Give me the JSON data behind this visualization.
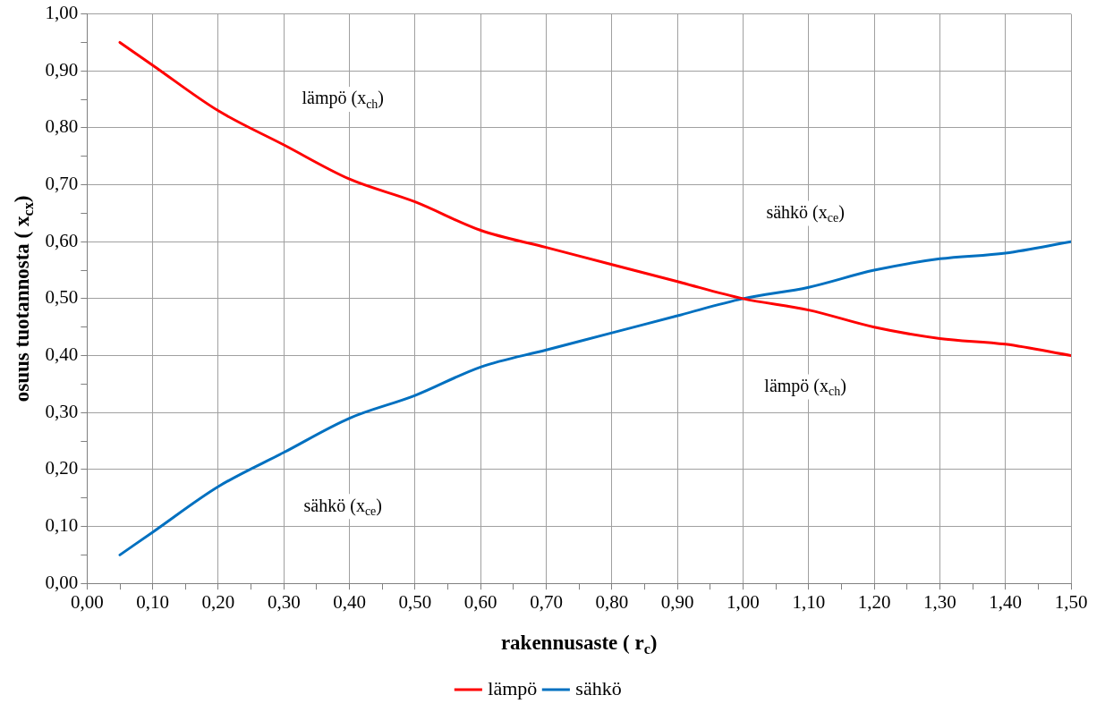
{
  "chart_data": {
    "type": "line",
    "xlabel": "rakennusaste ( r$_{c}$)",
    "ylabel": "osuus tuotannosta ( x$_{cx}$)",
    "x": [
      0.05,
      0.1,
      0.2,
      0.3,
      0.4,
      0.5,
      0.6,
      0.7,
      0.8,
      0.9,
      1.0,
      1.1,
      1.2,
      1.3,
      1.4,
      1.5
    ],
    "series": [
      {
        "name": "lämpö",
        "color": "#ff0000",
        "values": [
          0.95,
          0.91,
          0.83,
          0.77,
          0.71,
          0.67,
          0.62,
          0.59,
          0.56,
          0.53,
          0.5,
          0.48,
          0.45,
          0.43,
          0.42,
          0.4
        ]
      },
      {
        "name": "sähkö",
        "color": "#0070c0",
        "values": [
          0.05,
          0.09,
          0.17,
          0.23,
          0.29,
          0.33,
          0.38,
          0.41,
          0.44,
          0.47,
          0.5,
          0.52,
          0.55,
          0.57,
          0.58,
          0.6
        ]
      }
    ],
    "xlim": [
      0,
      1.5
    ],
    "xticks": [
      {
        "value": 0,
        "label": "0,00"
      },
      {
        "value": 0.05,
        "label": null
      },
      {
        "value": 0.1,
        "label": "0,10"
      },
      {
        "value": 0.15,
        "label": null
      },
      {
        "value": 0.2,
        "label": "0,20"
      },
      {
        "value": 0.25,
        "label": null
      },
      {
        "value": 0.3,
        "label": "0,30"
      },
      {
        "value": 0.35,
        "label": null
      },
      {
        "value": 0.4,
        "label": "0,40"
      },
      {
        "value": 0.45,
        "label": null
      },
      {
        "value": 0.5,
        "label": "0,50"
      },
      {
        "value": 0.55,
        "label": null
      },
      {
        "value": 0.6,
        "label": "0,60"
      },
      {
        "value": 0.65,
        "label": null
      },
      {
        "value": 0.7,
        "label": "0,70"
      },
      {
        "value": 0.75,
        "label": null
      },
      {
        "value": 0.8,
        "label": "0,80"
      },
      {
        "value": 0.85,
        "label": null
      },
      {
        "value": 0.9,
        "label": "0,90"
      },
      {
        "value": 0.95,
        "label": null
      },
      {
        "value": 1.0,
        "label": "1,00"
      },
      {
        "value": 1.05,
        "label": null
      },
      {
        "value": 1.1,
        "label": "1,10"
      },
      {
        "value": 1.15,
        "label": null
      },
      {
        "value": 1.2,
        "label": "1,20"
      },
      {
        "value": 1.25,
        "label": null
      },
      {
        "value": 1.3,
        "label": "1,30"
      },
      {
        "value": 1.35,
        "label": null
      },
      {
        "value": 1.4,
        "label": "1,40"
      },
      {
        "value": 1.45,
        "label": null
      },
      {
        "value": 1.5,
        "label": "1,50"
      }
    ],
    "ylim": [
      0,
      1
    ],
    "yticks": [
      {
        "value": 0,
        "label": "0,00"
      },
      {
        "value": 0.05,
        "label": null
      },
      {
        "value": 0.1,
        "label": "0,10"
      },
      {
        "value": 0.15,
        "label": null
      },
      {
        "value": 0.2,
        "label": "0,20"
      },
      {
        "value": 0.25,
        "label": null
      },
      {
        "value": 0.3,
        "label": "0,30"
      },
      {
        "value": 0.35,
        "label": null
      },
      {
        "value": 0.4,
        "label": "0,40"
      },
      {
        "value": 0.45,
        "label": null
      },
      {
        "value": 0.5,
        "label": "0,50"
      },
      {
        "value": 0.55,
        "label": null
      },
      {
        "value": 0.6,
        "label": "0,60"
      },
      {
        "value": 0.65,
        "label": null
      },
      {
        "value": 0.7,
        "label": "0,70"
      },
      {
        "value": 0.75,
        "label": null
      },
      {
        "value": 0.8,
        "label": "0,80"
      },
      {
        "value": 0.85,
        "label": null
      },
      {
        "value": 0.9,
        "label": "0,90"
      },
      {
        "value": 0.95,
        "label": null
      },
      {
        "value": 1.0,
        "label": "1,00"
      }
    ],
    "annotations": [
      "lämpö (x$_{ch}$)",
      "sähkö (x$_{ce}$)",
      "lämpö (x$_{ch}$)",
      "sähkö (x$_{ce}$)"
    ],
    "grid": true,
    "legend": "bottom",
    "marker": "none",
    "line_style": "solid"
  }
}
